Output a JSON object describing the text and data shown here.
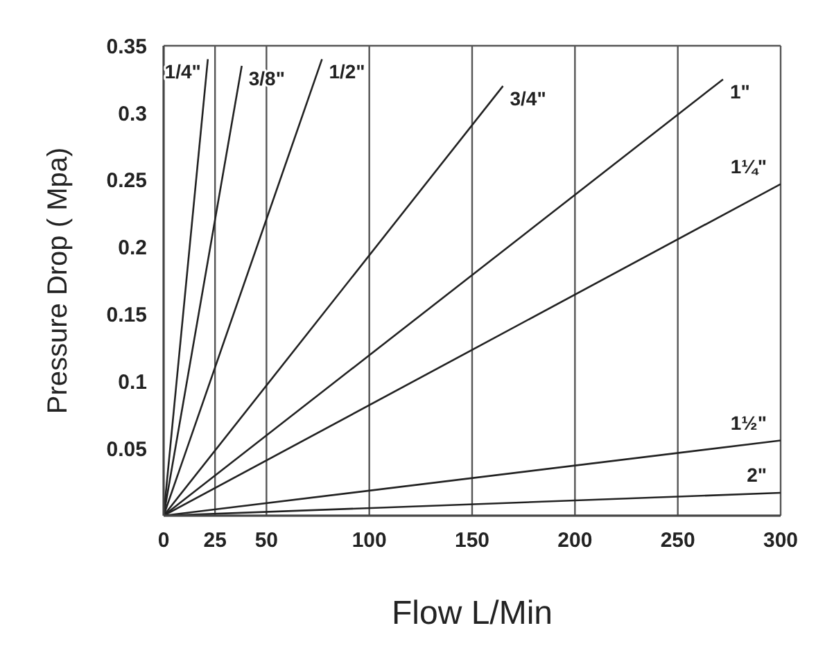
{
  "chart_data": {
    "type": "line",
    "xlabel": "Flow L/Min",
    "ylabel": "Pressure Drop ( Mpa)",
    "xlim": [
      0,
      300
    ],
    "xticks": [
      0,
      25,
      50,
      100,
      150,
      200,
      250,
      300
    ],
    "ylim": [
      0,
      0.35
    ],
    "yticks": [
      0.05,
      0.1,
      0.15,
      0.2,
      0.25,
      0.3,
      0.35
    ],
    "grid": true,
    "marker": "none",
    "line_style": "solid",
    "series": [
      {
        "name": "1/4\"",
        "color": "#222222",
        "x": [
          0,
          21.5
        ],
        "values": [
          0,
          0.34
        ]
      },
      {
        "name": "3/8\"",
        "color": "#222222",
        "x": [
          0,
          38
        ],
        "values": [
          0,
          0.335
        ]
      },
      {
        "name": "1/2\"",
        "color": "#222222",
        "x": [
          0,
          77
        ],
        "values": [
          0,
          0.34
        ]
      },
      {
        "name": "3/4\"",
        "color": "#222222",
        "x": [
          0,
          165
        ],
        "values": [
          0,
          0.32
        ]
      },
      {
        "name": "1\"",
        "color": "#222222",
        "x": [
          0,
          272
        ],
        "values": [
          0,
          0.325
        ]
      },
      {
        "name": "1¼\"",
        "color": "#222222",
        "x": [
          0,
          300
        ],
        "values": [
          0,
          0.247
        ]
      },
      {
        "name": "1½\"",
        "color": "#222222",
        "x": [
          0,
          300
        ],
        "values": [
          0,
          0.056
        ]
      },
      {
        "name": "2\"",
        "color": "#222222",
        "x": [
          0,
          300
        ],
        "values": [
          0,
          0.017
        ]
      }
    ]
  }
}
